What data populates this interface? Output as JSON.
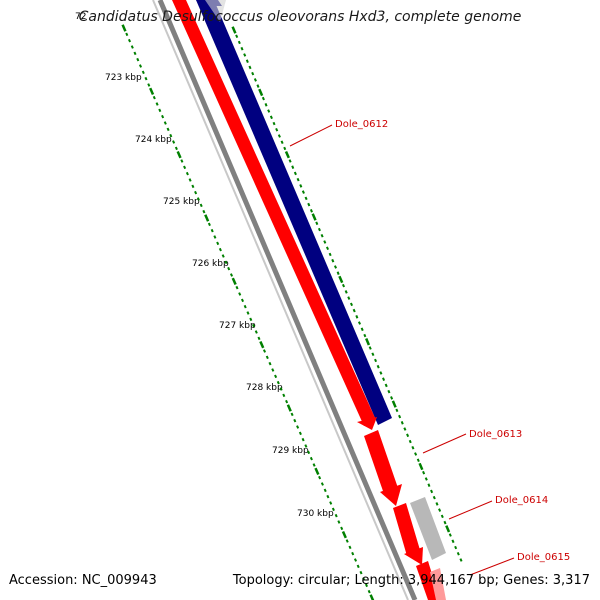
{
  "header": {
    "title": "Candidatus Desulfococcus oleovorans Hxd3, complete genome"
  },
  "footer": {
    "accession": "Accession: NC_009943",
    "topology": "Topology: circular; Length: 3,944,167 bp; Genes: 3,317"
  },
  "ticks": [
    {
      "label": "72",
      "tag": "tick-label-722"
    },
    {
      "label": "723 kbp",
      "tag": "tick-label-723"
    },
    {
      "label": "724 kbp",
      "tag": "tick-label-724"
    },
    {
      "label": "725 kbp",
      "tag": "tick-label-725"
    },
    {
      "label": "726 kbp",
      "tag": "tick-label-726"
    },
    {
      "label": "727 kbp",
      "tag": "tick-label-727"
    },
    {
      "label": "728 kbp",
      "tag": "tick-label-728"
    },
    {
      "label": "729 kbp",
      "tag": "tick-label-729"
    },
    {
      "label": "730 kbp",
      "tag": "tick-label-730"
    }
  ],
  "genes": [
    {
      "label": "Dole_0612"
    },
    {
      "label": "Dole_0613"
    },
    {
      "label": "Dole_0614"
    },
    {
      "label": "Dole_0615"
    }
  ],
  "colors": {
    "forward_gene": "#ff0000",
    "reverse_gene": "#000080",
    "other_feature": "#b8b8b8",
    "backbone": "#808080",
    "tick": "#008000",
    "gene_label": "#cc0000"
  }
}
